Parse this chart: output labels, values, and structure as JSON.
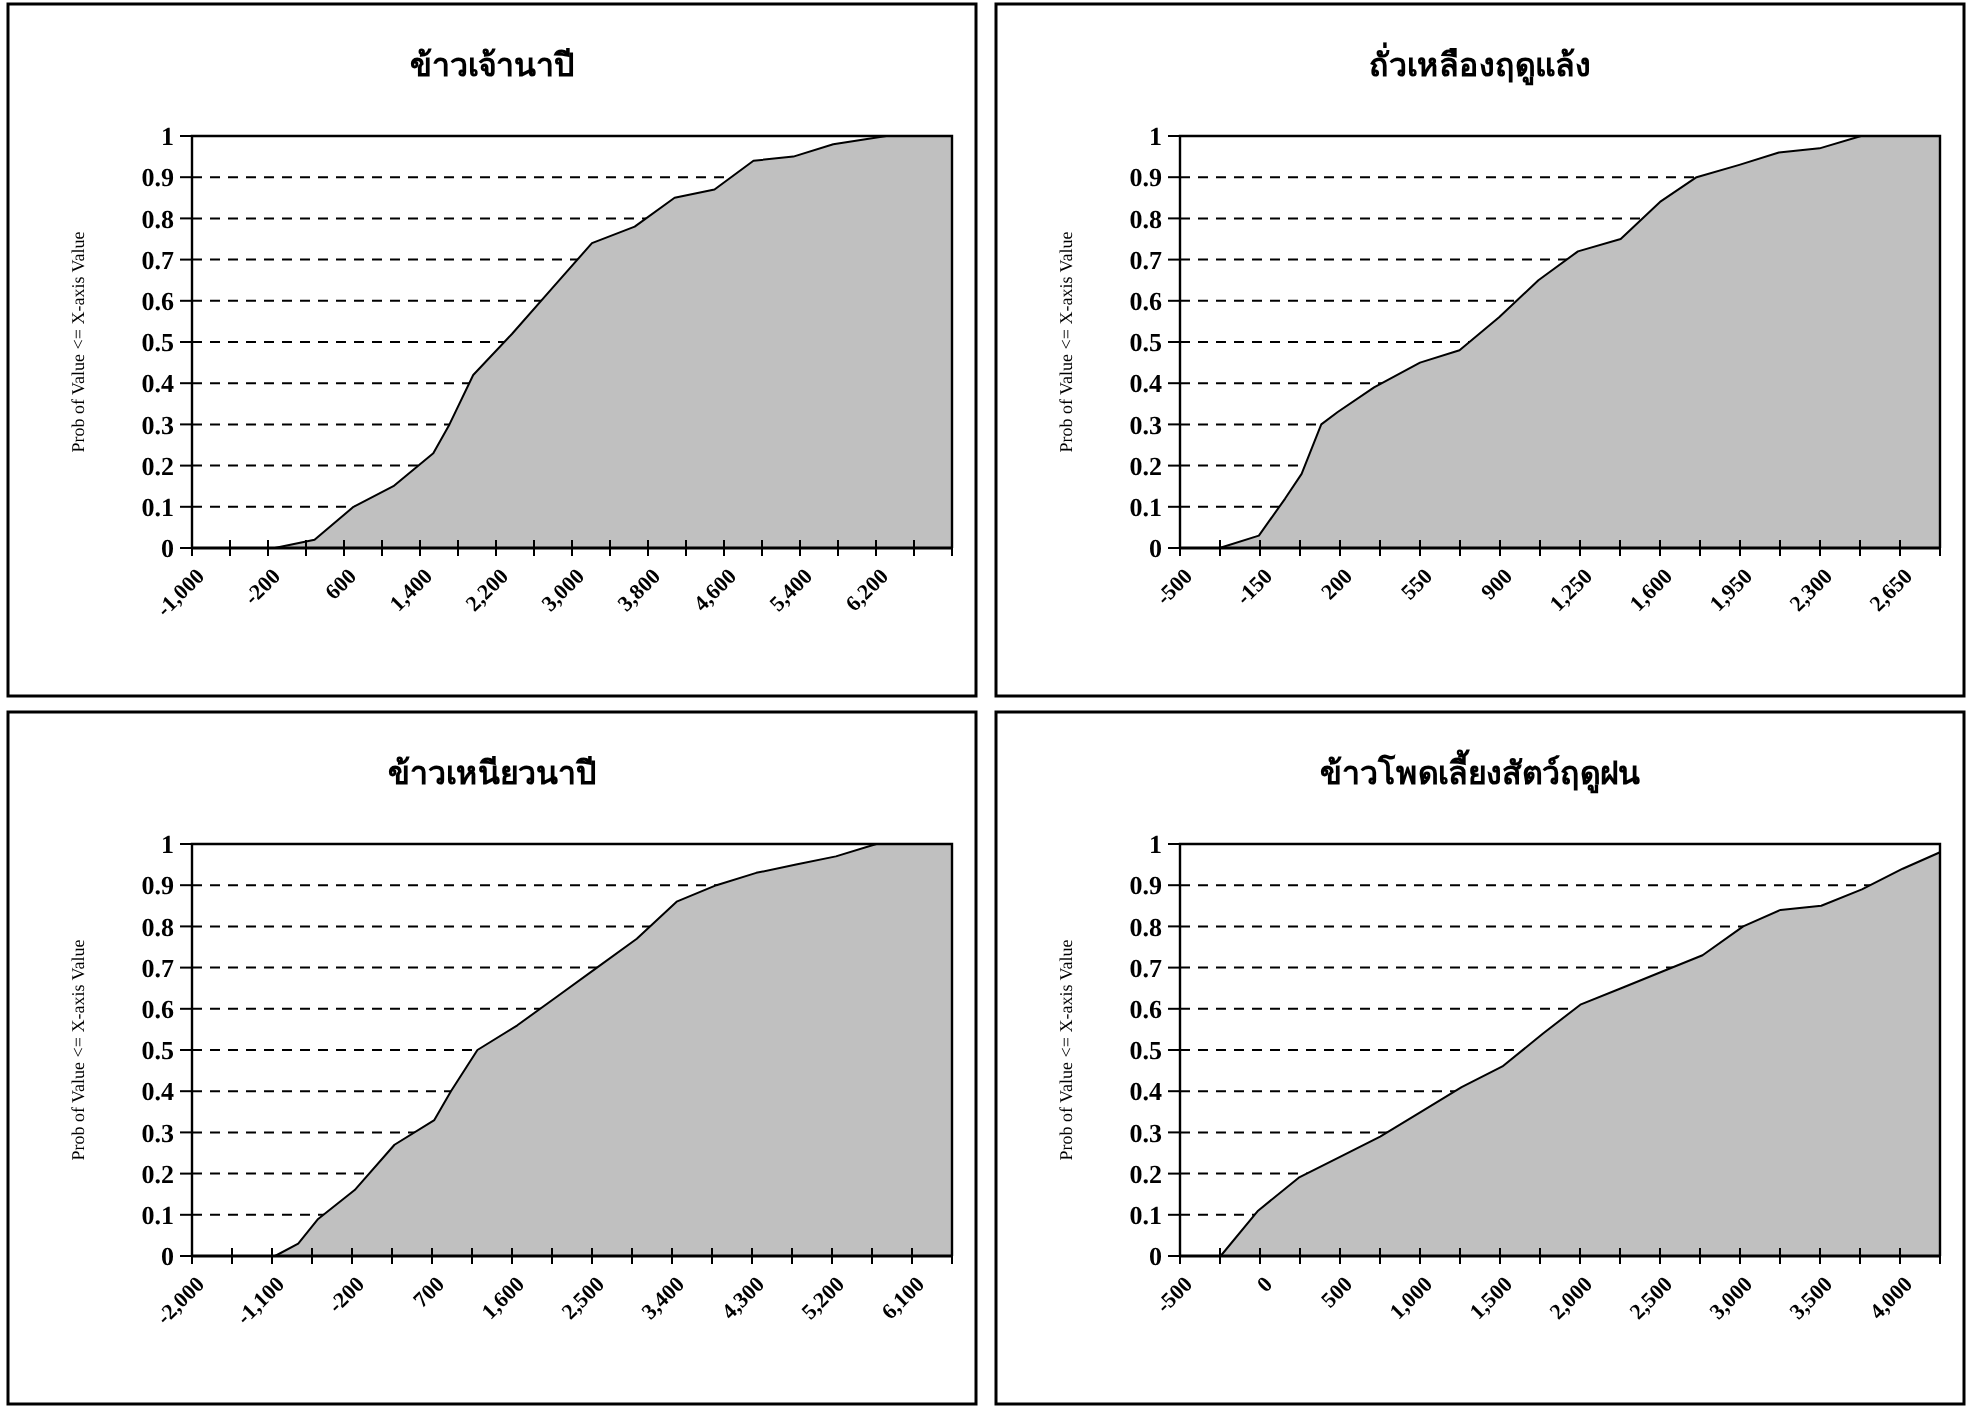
{
  "chart_data": [
    {
      "type": "area",
      "title": "ข้าวเจ้านาปี",
      "ylabel": "Prob of Value <= X-axis Value",
      "grid": "y",
      "color": "#c0c0c0",
      "x": [
        -130,
        290,
        700,
        1120,
        1540,
        1710,
        1960,
        2370,
        2790,
        3210,
        3660,
        4080,
        4500,
        4910,
        5330,
        5750,
        6310,
        7000
      ],
      "values": [
        0,
        0.02,
        0.1,
        0.15,
        0.23,
        0.3,
        0.42,
        0.52,
        0.63,
        0.74,
        0.78,
        0.85,
        0.87,
        0.94,
        0.95,
        0.98,
        1,
        1
      ],
      "xlim": [
        -1000,
        7000
      ],
      "ylim": [
        0,
        1
      ],
      "yticks": [
        0,
        0.1,
        0.2,
        0.3,
        0.4,
        0.5,
        0.6,
        0.7,
        0.8,
        0.9,
        1
      ],
      "xticks": [
        {
          "value": -1000,
          "label": "-1,000"
        },
        {
          "value": -600,
          "label": null
        },
        -200,
        {
          "value": 200,
          "label": null
        },
        600,
        {
          "value": 1000,
          "label": null
        },
        {
          "value": 1400,
          "label": "1,400"
        },
        {
          "value": 1800,
          "label": null
        },
        {
          "value": 2200,
          "label": "2,200"
        },
        {
          "value": 2600,
          "label": null
        },
        {
          "value": 3000,
          "label": "3,000"
        },
        {
          "value": 3400,
          "label": null
        },
        {
          "value": 3800,
          "label": "3,800"
        },
        {
          "value": 4200,
          "label": null
        },
        {
          "value": 4600,
          "label": "4,600"
        },
        {
          "value": 5000,
          "label": null
        },
        {
          "value": 5400,
          "label": "5,400"
        },
        {
          "value": 5800,
          "label": null
        },
        {
          "value": 6200,
          "label": "6,200"
        },
        {
          "value": 6600,
          "label": null
        },
        {
          "value": 7000,
          "label": null
        }
      ]
    },
    {
      "type": "area",
      "title": "ถั่วเหลืองฤดูแล้ง",
      "ylabel": "Prob of Value <= X-axis Value",
      "grid": "y",
      "color": "#c0c0c0",
      "x": [
        -327,
        -155,
        -40,
        32,
        118,
        190,
        349,
        550,
        723,
        896,
        1068,
        1241,
        1428,
        1600,
        1760,
        1947,
        2120,
        2298,
        2480,
        2825
      ],
      "values": [
        0,
        0.03,
        0.12,
        0.18,
        0.3,
        0.33,
        0.39,
        0.45,
        0.48,
        0.56,
        0.65,
        0.72,
        0.75,
        0.84,
        0.9,
        0.93,
        0.96,
        0.97,
        1,
        1
      ],
      "xlim": [
        -500,
        2825
      ],
      "ylim": [
        0,
        1
      ],
      "yticks": [
        0,
        0.1,
        0.2,
        0.3,
        0.4,
        0.5,
        0.6,
        0.7,
        0.8,
        0.9,
        1
      ],
      "xticks": [
        -500,
        {
          "value": -325,
          "label": null
        },
        -150,
        {
          "value": 25,
          "label": null
        },
        200,
        {
          "value": 375,
          "label": null
        },
        550,
        {
          "value": 725,
          "label": null
        },
        900,
        {
          "value": 1075,
          "label": null
        },
        {
          "value": 1250,
          "label": "1,250"
        },
        {
          "value": 1425,
          "label": null
        },
        {
          "value": 1600,
          "label": "1,600"
        },
        {
          "value": 1775,
          "label": null
        },
        {
          "value": 1950,
          "label": "1,950"
        },
        {
          "value": 2125,
          "label": null
        },
        {
          "value": 2300,
          "label": "2,300"
        },
        {
          "value": 2475,
          "label": null
        },
        {
          "value": 2650,
          "label": "2,650"
        },
        {
          "value": 2825,
          "label": null
        }
      ]
    },
    {
      "type": "area",
      "title": "ข้าวเหนียวนาปี",
      "ylabel": "Prob of Value <= X-axis Value",
      "grid": "y",
      "color": "#c0c0c0",
      "x": [
        -1066,
        -805,
        -581,
        -170,
        278,
        726,
        913,
        1211,
        1660,
        2108,
        2556,
        3004,
        3452,
        3900,
        4348,
        4796,
        5244,
        5700,
        6550
      ],
      "values": [
        0,
        0.03,
        0.09,
        0.16,
        0.27,
        0.33,
        0.4,
        0.5,
        0.56,
        0.63,
        0.7,
        0.77,
        0.86,
        0.9,
        0.93,
        0.95,
        0.97,
        1,
        1
      ],
      "xlim": [
        -2000,
        6550
      ],
      "ylim": [
        0,
        1
      ],
      "yticks": [
        0,
        0.1,
        0.2,
        0.3,
        0.4,
        0.5,
        0.6,
        0.7,
        0.8,
        0.9,
        1
      ],
      "xticks": [
        {
          "value": -2000,
          "label": "-2,000"
        },
        {
          "value": -1550,
          "label": null
        },
        {
          "value": -1100,
          "label": "-1,100"
        },
        {
          "value": -650,
          "label": null
        },
        -200,
        {
          "value": 250,
          "label": null
        },
        700,
        {
          "value": 1150,
          "label": null
        },
        {
          "value": 1600,
          "label": "1,600"
        },
        {
          "value": 2050,
          "label": null
        },
        {
          "value": 2500,
          "label": "2,500"
        },
        {
          "value": 2950,
          "label": null
        },
        {
          "value": 3400,
          "label": "3,400"
        },
        {
          "value": 3850,
          "label": null
        },
        {
          "value": 4300,
          "label": "4,300"
        },
        {
          "value": 4750,
          "label": null
        },
        {
          "value": 5200,
          "label": "5,200"
        },
        {
          "value": 5650,
          "label": null
        },
        {
          "value": 6100,
          "label": "6,100"
        },
        {
          "value": 6550,
          "label": null
        }
      ]
    },
    {
      "type": "area",
      "title": "ข้าวโพดเลี้ยงสัตว์ฤดูฝน",
      "ylabel": "Prob of Value <= X-axis Value",
      "grid": "y",
      "color": "#c0c0c0",
      "x": [
        -246,
        -12,
        242,
        497,
        751,
        1006,
        1260,
        1515,
        1769,
        2002,
        2257,
        2511,
        2766,
        3020,
        3253,
        3508,
        3762,
        4017,
        4250
      ],
      "values": [
        0,
        0.11,
        0.19,
        0.24,
        0.29,
        0.35,
        0.41,
        0.46,
        0.54,
        0.61,
        0.65,
        0.69,
        0.73,
        0.8,
        0.84,
        0.85,
        0.89,
        0.94,
        0.98
      ],
      "xlim": [
        -500,
        4250
      ],
      "ylim": [
        0,
        1
      ],
      "yticks": [
        0,
        0.1,
        0.2,
        0.3,
        0.4,
        0.5,
        0.6,
        0.7,
        0.8,
        0.9,
        1
      ],
      "xticks": [
        -500,
        {
          "value": -250,
          "label": null
        },
        0,
        {
          "value": 250,
          "label": null
        },
        500,
        {
          "value": 750,
          "label": null
        },
        {
          "value": 1000,
          "label": "1,000"
        },
        {
          "value": 1250,
          "label": null
        },
        {
          "value": 1500,
          "label": "1,500"
        },
        {
          "value": 1750,
          "label": null
        },
        {
          "value": 2000,
          "label": "2,000"
        },
        {
          "value": 2250,
          "label": null
        },
        {
          "value": 2500,
          "label": "2,500"
        },
        {
          "value": 2750,
          "label": null
        },
        {
          "value": 3000,
          "label": "3,000"
        },
        {
          "value": 3250,
          "label": null
        },
        {
          "value": 3500,
          "label": "3,500"
        },
        {
          "value": 3750,
          "label": null
        },
        {
          "value": 4000,
          "label": "4,000"
        },
        {
          "value": 4250,
          "label": null
        }
      ]
    }
  ]
}
